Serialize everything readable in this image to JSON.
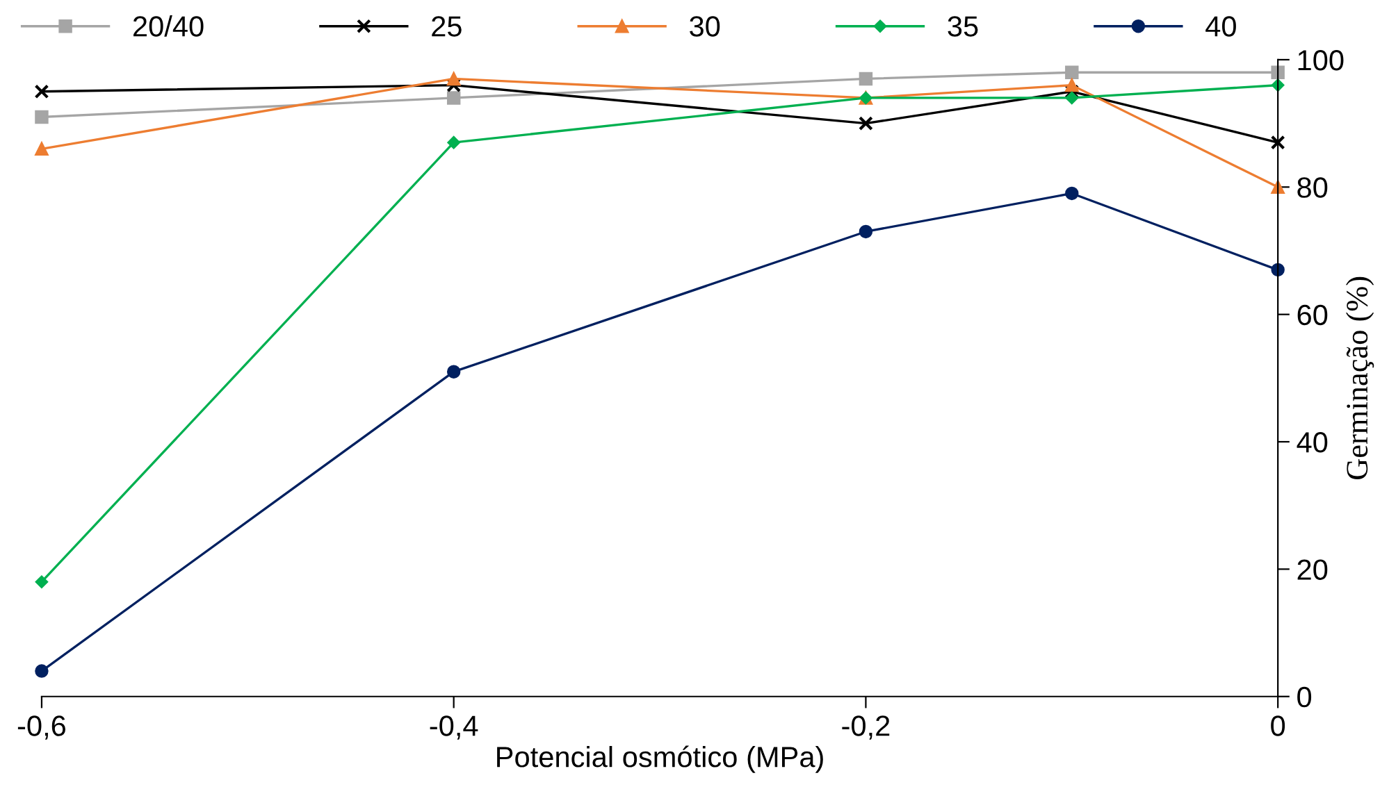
{
  "chart_data": {
    "type": "line",
    "xlabel": "Potencial osmótico (MPa)",
    "y2label": "Germinação (%)",
    "x": [
      -0.6,
      -0.4,
      -0.2,
      -0.1,
      0
    ],
    "series": [
      {
        "name": "20/40",
        "color": "#a5a5a5",
        "marker": "square",
        "values": [
          91,
          94,
          97,
          98,
          98
        ]
      },
      {
        "name": "25",
        "color": "#000000",
        "marker": "cross",
        "values": [
          95,
          96,
          90,
          95,
          87
        ]
      },
      {
        "name": "30",
        "color": "#ed7d31",
        "marker": "triangle",
        "values": [
          86,
          97,
          94,
          96,
          80
        ]
      },
      {
        "name": "35",
        "color": "#00b050",
        "marker": "diamond",
        "values": [
          18,
          87,
          94,
          94,
          96
        ]
      },
      {
        "name": "40",
        "color": "#002060",
        "marker": "circle",
        "values": [
          4,
          51,
          73,
          79,
          67
        ]
      }
    ],
    "xlim": [
      -0.6,
      0
    ],
    "xticks": [
      {
        "value": -0.6,
        "label": "-0,6"
      },
      {
        "value": -0.4,
        "label": "-0,4"
      },
      {
        "value": -0.2,
        "label": "-0,2"
      },
      0
    ],
    "ylim": [
      0,
      100
    ],
    "yticks": [
      0,
      20,
      40,
      60,
      80,
      100
    ],
    "legend": "top",
    "grid": false,
    "line_style": "solid"
  }
}
